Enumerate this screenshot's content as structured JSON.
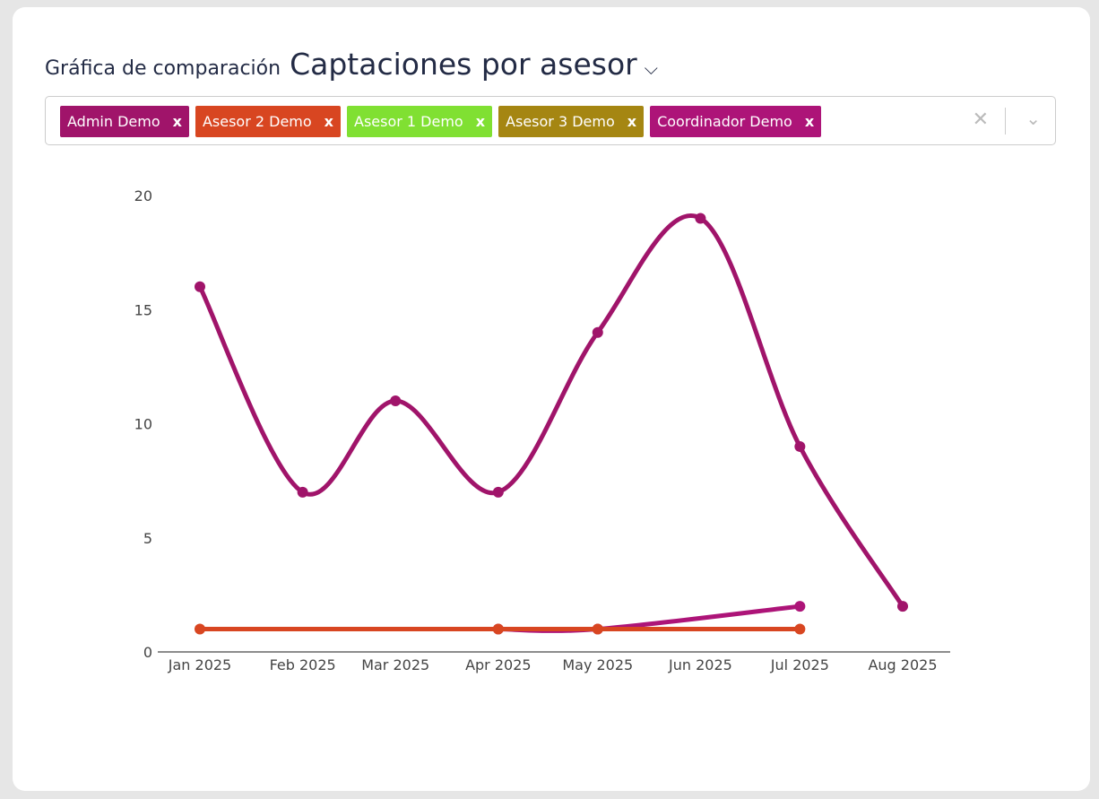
{
  "header": {
    "subtitle": "Gráfica de comparación",
    "title": "Captaciones por asesor",
    "chevron_icon": "chevron-down-icon"
  },
  "filter": {
    "tags": [
      {
        "label": "Admin Demo",
        "color": "#a0146a"
      },
      {
        "label": "Asesor 2 Demo",
        "color": "#d84621"
      },
      {
        "label": "Asesor 1 Demo",
        "color": "#80e032"
      },
      {
        "label": "Asesor 3 Demo",
        "color": "#a58612"
      },
      {
        "label": "Coordinador Demo",
        "color": "#ad1478"
      }
    ],
    "remove_glyph": "x",
    "clear_glyph": "✕",
    "dropdown_glyph": "⌄"
  },
  "chart_data": {
    "type": "line",
    "ylim": [
      0,
      20
    ],
    "yticks": [
      0,
      5,
      10,
      15,
      20
    ],
    "xticks": [
      "Jan 2025",
      "Feb 2025",
      "Mar 2025",
      "Apr 2025",
      "May 2025",
      "Jun 2025",
      "Jul 2025",
      "Aug 2025"
    ],
    "grid": false,
    "series": [
      {
        "name": "Admin Demo",
        "color": "#a0146a",
        "x": [
          "2025-01-01",
          "2025-02-01",
          "2025-03-01",
          "2025-04-01",
          "2025-05-01",
          "2025-06-01",
          "2025-07-01",
          "2025-08-01"
        ],
        "y": [
          16,
          7,
          11,
          7,
          14,
          19,
          9,
          2
        ]
      },
      {
        "name": "Coordinador Demo",
        "color": "#ad1478",
        "x": [
          "2025-04-01",
          "2025-05-01",
          "2025-07-01"
        ],
        "y": [
          1,
          1,
          2
        ]
      },
      {
        "name": "Asesor 2 Demo",
        "color": "#d84621",
        "x": [
          "2025-01-01",
          "2025-04-01",
          "2025-05-01",
          "2025-07-01"
        ],
        "y": [
          1,
          1,
          1,
          1
        ]
      }
    ]
  }
}
